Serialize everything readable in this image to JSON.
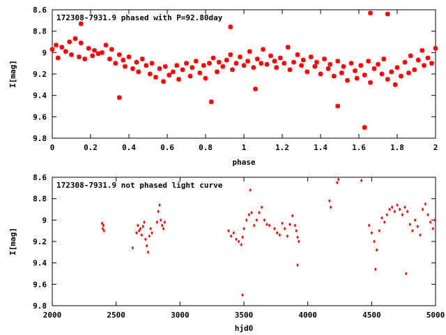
{
  "chart_data": [
    {
      "type": "scatter",
      "title": "172308-7931.9 phased with P=92.80day",
      "xlabel": "phase",
      "ylabel": "I[mag]",
      "xlim": [
        0,
        2
      ],
      "ylim": [
        8.6,
        9.8
      ],
      "y_inverted": true,
      "xticks": [
        0,
        0.2,
        0.4,
        0.6,
        0.8,
        1,
        1.2,
        1.4,
        1.6,
        1.8,
        2
      ],
      "xtick_labels": [
        "0",
        "0.2",
        "0.4",
        "0.6",
        "0.8",
        "1",
        "1.2",
        "1.4",
        "1.6",
        "1.8",
        "2"
      ],
      "yticks": [
        8.6,
        8.8,
        9,
        9.2,
        9.4,
        9.6,
        9.8
      ],
      "ytick_labels": [
        "8.6",
        "8.8",
        "9",
        "9.2",
        "9.4",
        "9.6",
        "9.8"
      ],
      "grid": false,
      "marker": "star",
      "color": "#ff0000",
      "series": [
        {
          "x": [
            0.0,
            0.02,
            0.03,
            0.05,
            0.07,
            0.09,
            0.1,
            0.12,
            0.14,
            0.15,
            0.17,
            0.19,
            0.21,
            0.22,
            0.24,
            0.26,
            0.28,
            0.3,
            0.31,
            0.33,
            0.35,
            0.37,
            0.38,
            0.4,
            0.42,
            0.44,
            0.45,
            0.47,
            0.49,
            0.51,
            0.52,
            0.54,
            0.56,
            0.58,
            0.59,
            0.61,
            0.63,
            0.65,
            0.66,
            0.68,
            0.7,
            0.72,
            0.73,
            0.75,
            0.77,
            0.79,
            0.8,
            0.82,
            0.84,
            0.86,
            0.87,
            0.89,
            0.91,
            0.93,
            0.94,
            0.96,
            0.98,
            1.0,
            1.02,
            1.03,
            1.05,
            1.07,
            1.09,
            1.1,
            1.12,
            1.14,
            1.16,
            1.17,
            1.19,
            1.21,
            1.23,
            1.24,
            1.26,
            1.28,
            1.3,
            1.31,
            1.33,
            1.35,
            1.37,
            1.38,
            1.4,
            1.42,
            1.44,
            1.45,
            1.47,
            1.49,
            1.51,
            1.52,
            1.54,
            1.56,
            1.58,
            1.59,
            1.61,
            1.63,
            1.65,
            1.66,
            1.68,
            1.7,
            1.72,
            1.73,
            1.75,
            1.77,
            1.79,
            1.8,
            1.82,
            1.84,
            1.86,
            1.87,
            1.89,
            1.91,
            1.93,
            1.94,
            1.96,
            1.98,
            2.0,
            0.35,
            0.83,
            1.06,
            1.49,
            1.63,
            0.93,
            1.66,
            1.75,
            0.15
          ],
          "y": [
            8.97,
            8.93,
            9.05,
            8.95,
            8.99,
            8.9,
            9.02,
            8.87,
            9.04,
            8.91,
            9.06,
            8.96,
            9.03,
            8.98,
            9.01,
            9.0,
            8.93,
            9.06,
            8.97,
            9.1,
            9.02,
            9.07,
            9.13,
            9.04,
            9.15,
            9.09,
            9.18,
            9.06,
            9.12,
            9.2,
            9.1,
            9.23,
            9.15,
            9.27,
            9.13,
            9.21,
            9.18,
            9.12,
            9.25,
            9.16,
            9.1,
            9.22,
            9.14,
            9.08,
            9.19,
            9.12,
            9.24,
            9.1,
            9.05,
            9.18,
            9.09,
            9.13,
            9.07,
            9.02,
            9.16,
            9.1,
            9.04,
            9.12,
            9.08,
            8.99,
            9.14,
            9.06,
            9.1,
            8.97,
            9.11,
            9.03,
            9.08,
            9.14,
            9.05,
            9.1,
            8.95,
            9.16,
            9.09,
            9.02,
            9.12,
            9.07,
            9.18,
            9.04,
            9.13,
            9.09,
            9.2,
            9.06,
            9.15,
            9.11,
            9.22,
            9.08,
            9.19,
            9.13,
            9.26,
            9.1,
            9.17,
            9.24,
            9.12,
            9.21,
            9.08,
            9.28,
            9.15,
            9.11,
            9.2,
            9.06,
            9.25,
            9.18,
            9.3,
            9.14,
            9.22,
            9.09,
            9.19,
            9.03,
            9.16,
            9.07,
            8.98,
            9.12,
            9.05,
            9.1,
            8.96,
            9.42,
            9.46,
            9.34,
            9.5,
            9.7,
            8.76,
            8.63,
            8.64,
            8.73
          ],
          "color": "#ff0000"
        }
      ]
    },
    {
      "type": "scatter",
      "title": "172308-7931.9 not phased light curve",
      "xlabel": "hjd0",
      "ylabel": "I[mag]",
      "xlim": [
        2000,
        5000
      ],
      "ylim": [
        8.6,
        9.8
      ],
      "y_inverted": true,
      "xticks": [
        2000,
        2500,
        3000,
        3500,
        4000,
        4500,
        5000
      ],
      "xtick_labels": [
        "2000",
        "2500",
        "3000",
        "3500",
        "4000",
        "4500",
        "5000"
      ],
      "yticks": [
        8.6,
        8.8,
        9,
        9.2,
        9.4,
        9.6,
        9.8
      ],
      "ytick_labels": [
        "8.6",
        "8.8",
        "9",
        "9.2",
        "9.4",
        "9.6",
        "9.8"
      ],
      "grid": false,
      "marker": "diamond",
      "color": "#ff0000",
      "series": [
        {
          "x": [
            2390,
            2395,
            2400,
            2405,
            2630,
            2660,
            2670,
            2680,
            2690,
            2700,
            2710,
            2720,
            2730,
            2740,
            2750,
            2760,
            2770,
            2780,
            2820,
            2830,
            2840,
            2850,
            2860,
            2870,
            2880,
            3380,
            3400,
            3420,
            3440,
            3460,
            3480,
            3490,
            3500,
            3520,
            3540,
            3560,
            3580,
            3600,
            3620,
            3640,
            3660,
            3680,
            3700,
            3740,
            3760,
            3780,
            3800,
            3820,
            3840,
            3860,
            3880,
            3900,
            3910,
            3920,
            3930,
            4170,
            4180,
            4230,
            4240,
            4420,
            4480,
            4500,
            4520,
            4540,
            4560,
            4580,
            4600,
            4620,
            4640,
            4660,
            4680,
            4700,
            4720,
            4740,
            4760,
            4780,
            4800,
            4820,
            4840,
            4860,
            4880,
            4900,
            4920,
            4940,
            4960,
            4980,
            4995,
            3490,
            3920,
            4530,
            4770,
            3550
          ],
          "y": [
            9.03,
            9.08,
            9.05,
            9.1,
            9.26,
            9.12,
            9.05,
            9.1,
            9.08,
            9.14,
            9.06,
            9.02,
            9.18,
            9.24,
            9.3,
            9.15,
            9.08,
            9.12,
            9.02,
            8.92,
            8.86,
            9.0,
            9.05,
            9.08,
            9.02,
            9.1,
            9.15,
            9.12,
            9.18,
            9.2,
            9.23,
            9.16,
            9.08,
            9.0,
            8.95,
            8.93,
            9.05,
            9.0,
            8.93,
            8.88,
            9.0,
            9.04,
            9.05,
            9.08,
            9.12,
            9.14,
            9.03,
            9.08,
            9.15,
            9.04,
            8.96,
            9.05,
            9.1,
            9.16,
            9.2,
            8.82,
            8.88,
            8.65,
            8.62,
            8.63,
            9.05,
            9.12,
            9.2,
            9.28,
            9.1,
            8.98,
            9.02,
            8.95,
            8.9,
            8.88,
            8.92,
            8.86,
            8.9,
            8.95,
            8.88,
            8.92,
            9.04,
            9.1,
            9.0,
            9.06,
            9.14,
            8.9,
            8.85,
            8.95,
            9.02,
            9.08,
            9.0,
            9.7,
            9.42,
            9.46,
            9.5,
            8.72
          ],
          "color": "#ff0000"
        }
      ]
    }
  ]
}
